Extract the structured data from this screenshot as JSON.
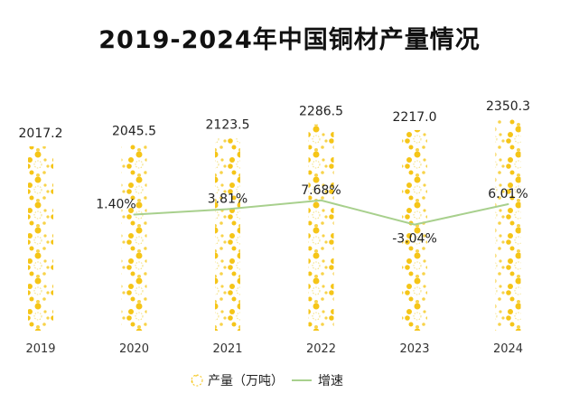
{
  "chart_data": {
    "type": "bar",
    "title": "2019-2024年中国铜材产量情况",
    "categories": [
      "2019",
      "2020",
      "2021",
      "2022",
      "2023",
      "2024"
    ],
    "series": [
      {
        "name": "产量（万吨）",
        "type": "bar",
        "values": [
          2017.2,
          2045.5,
          2123.5,
          2286.5,
          2217.0,
          2350.3
        ],
        "labels": [
          "2017.2",
          "2045.5",
          "2123.5",
          "2286.5",
          "2217.0",
          "2350.3"
        ],
        "color": "#f5c518"
      },
      {
        "name": "增速",
        "type": "line",
        "values": [
          null,
          1.4,
          3.81,
          7.68,
          -3.04,
          6.01
        ],
        "labels": [
          "",
          "1.40%",
          "3.81%",
          "7.68%",
          "-3.04%",
          "6.01%"
        ],
        "color": "#a8d08d"
      }
    ],
    "ylim": [
      -250,
      2450
    ],
    "y2lim": [
      -50,
      50
    ],
    "grid": false,
    "legend": "bottom-center"
  }
}
